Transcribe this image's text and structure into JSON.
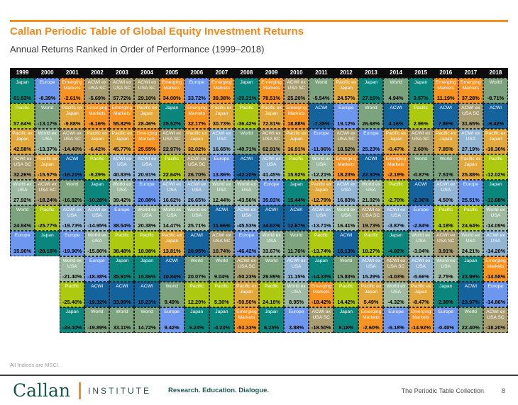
{
  "header": {
    "title": "Callan Periodic Table of Global Equity Investment Returns",
    "subtitle": "Annual Returns Ranked in Order of Performance (1999–2018)"
  },
  "footnote": "All Indices are MSCI.",
  "footer": {
    "brand": "Callan",
    "brand_sub": "INSTITUTE",
    "tagline": "Research. Education. Dialogue.",
    "collection": "The Periodic Table Collection",
    "page_number": "8"
  },
  "colors": {
    "accent_orange": "#f68b1f",
    "brand_teal": "#1e564b",
    "header_bar": "#0c0c0c"
  },
  "chart_data": {
    "type": "table",
    "title": "Callan Periodic Table of Global Equity Investment Returns",
    "subtitle": "Annual Returns Ranked in Order of Performance (1999–2018)",
    "note": "Columns list asset classes ranked best to worst annual return; 1999 and 2000 have 7 ranked indices, 2001-2018 have 10.",
    "assets": {
      "jpn": {
        "label": "Japan",
        "color": "#0a867c"
      },
      "eur": {
        "label": "Europe",
        "color": "#6d97ee"
      },
      "em": {
        "label": "Emerging Markets",
        "color": "#f79323"
      },
      "axussc": {
        "label": "ACWI ex USA SC",
        "color": "#a89e72"
      },
      "pac": {
        "label": "Pacific",
        "color": "#aeca10"
      },
      "wld": {
        "label": "World",
        "color": "#7ca37d"
      },
      "pxj": {
        "label": "Pacific ex Japan",
        "color": "#e2a83c"
      },
      "wxus": {
        "label": "World ex USA",
        "color": "#9fbaa2"
      },
      "acwi": {
        "label": "ACWI",
        "color": "#15639d"
      },
      "axus": {
        "label": "ACWI ex USA",
        "color": "#93b5d4"
      }
    },
    "columns": [
      {
        "year": "1999",
        "cells": [
          [
            "jpn",
            "61.53%"
          ],
          [
            "pac",
            "57.64%"
          ],
          [
            "pxj",
            "42.58%"
          ],
          [
            "axussc",
            "32.26%"
          ],
          [
            "wxus",
            "27.92%"
          ],
          [
            "wld",
            "24.94%"
          ],
          [
            "eur",
            "15.90%"
          ]
        ]
      },
      {
        "year": "2000",
        "cells": [
          [
            "eur",
            "-8.39%"
          ],
          [
            "wld",
            "-13.17%"
          ],
          [
            "wxus",
            "-13.37%"
          ],
          [
            "pxj",
            "-15.57%"
          ],
          [
            "axussc",
            "-18.24%"
          ],
          [
            "pac",
            "-25.77%"
          ],
          [
            "jpn",
            "-28.16%"
          ]
        ]
      },
      {
        "year": "2001",
        "cells": [
          [
            "em",
            "-2.61%"
          ],
          [
            "pxj",
            "-9.88%"
          ],
          [
            "axussc",
            "-14.40%"
          ],
          [
            "acwi",
            "-16.21%"
          ],
          [
            "wld",
            "-16.82%"
          ],
          [
            "axus",
            "-19.73%"
          ],
          [
            "eur",
            "-19.90%"
          ],
          [
            "wxus",
            "-21.40%"
          ],
          [
            "pac",
            "-25.40%"
          ],
          [
            "jpn",
            "-29.40%"
          ]
        ]
      },
      {
        "year": "2002",
        "cells": [
          [
            "axussc",
            "-5.69%"
          ],
          [
            "em",
            "-6.16%"
          ],
          [
            "pxj",
            "-6.42%"
          ],
          [
            "pac",
            "-9.29%"
          ],
          [
            "jpn",
            "-10.28%"
          ],
          [
            "axus",
            "-14.95%"
          ],
          [
            "wxus",
            "-15.80%"
          ],
          [
            "eur",
            "-18.38%"
          ],
          [
            "acwi",
            "-19.32%"
          ],
          [
            "wld",
            "-19.89%"
          ]
        ]
      },
      {
        "year": "2003",
        "cells": [
          [
            "axussc",
            "57.72%"
          ],
          [
            "em",
            "55.82%"
          ],
          [
            "pxj",
            "45.77%"
          ],
          [
            "axus",
            "40.83%"
          ],
          [
            "wxus",
            "39.42%"
          ],
          [
            "eur",
            "38.54%"
          ],
          [
            "pac",
            "38.48%"
          ],
          [
            "jpn",
            "35.91%"
          ],
          [
            "acwi",
            "33.99%"
          ],
          [
            "wld",
            "33.11%"
          ]
        ]
      },
      {
        "year": "2004",
        "cells": [
          [
            "axussc",
            "29.10%"
          ],
          [
            "pxj",
            "28.46%"
          ],
          [
            "em",
            "25.55%"
          ],
          [
            "axus",
            "20.91%"
          ],
          [
            "eur",
            "20.88%"
          ],
          [
            "wxus",
            "20.38%"
          ],
          [
            "pac",
            "18.98%"
          ],
          [
            "jpn",
            "15.86%"
          ],
          [
            "acwi",
            "15.23%"
          ],
          [
            "wld",
            "14.72%"
          ]
        ]
      },
      {
        "year": "2005",
        "cells": [
          [
            "em",
            "34.00%"
          ],
          [
            "jpn",
            "25.52%"
          ],
          [
            "axussc",
            "22.97%"
          ],
          [
            "pac",
            "22.64%"
          ],
          [
            "axus",
            "16.62%"
          ],
          [
            "wxus",
            "14.47%"
          ],
          [
            "pxj",
            "13.81%"
          ],
          [
            "acwi",
            "10.84%"
          ],
          [
            "wld",
            "9.49%"
          ],
          [
            "eur",
            "9.42%"
          ]
        ]
      },
      {
        "year": "2006",
        "cells": [
          [
            "eur",
            "33.72%"
          ],
          [
            "em",
            "32.17%"
          ],
          [
            "pxj",
            "32.02%"
          ],
          [
            "axussc",
            "26.70%"
          ],
          [
            "axus",
            "26.65%"
          ],
          [
            "wxus",
            "25.71%"
          ],
          [
            "acwi",
            "20.95%"
          ],
          [
            "wld",
            "20.07%"
          ],
          [
            "pac",
            "12.20%"
          ],
          [
            "jpn",
            "6.24%"
          ]
        ]
      },
      {
        "year": "2007",
        "cells": [
          [
            "em",
            "39.38%"
          ],
          [
            "pxj",
            "30.73%"
          ],
          [
            "axus",
            "16.65%"
          ],
          [
            "eur",
            "13.86%"
          ],
          [
            "wxus",
            "12.44%"
          ],
          [
            "acwi",
            "11.66%"
          ],
          [
            "axussc",
            "10.74%"
          ],
          [
            "wld",
            "9.04%"
          ],
          [
            "pac",
            "5.30%"
          ],
          [
            "jpn",
            "-4.23%"
          ]
        ]
      },
      {
        "year": "2008",
        "cells": [
          [
            "jpn",
            "-29.21%"
          ],
          [
            "pac",
            "-36.42%"
          ],
          [
            "wld",
            "-40.71%"
          ],
          [
            "acwi",
            "-42.20%"
          ],
          [
            "wxus",
            "-43.56%"
          ],
          [
            "axus",
            "-45.53%"
          ],
          [
            "eur",
            "-46.42%"
          ],
          [
            "axussc",
            "-50.23%"
          ],
          [
            "pxj",
            "-50.50%"
          ],
          [
            "em",
            "-53.33%"
          ]
        ]
      },
      {
        "year": "2009",
        "cells": [
          [
            "em",
            "78.51%"
          ],
          [
            "pxj",
            "72.81%"
          ],
          [
            "axussc",
            "62.91%"
          ],
          [
            "axus",
            "41.45%"
          ],
          [
            "eur",
            "35.83%"
          ],
          [
            "acwi",
            "34.63%"
          ],
          [
            "wxus",
            "33.67%"
          ],
          [
            "wld",
            "29.99%"
          ],
          [
            "pac",
            "24.18%"
          ],
          [
            "jpn",
            "6.25%"
          ]
        ]
      },
      {
        "year": "2010",
        "cells": [
          [
            "axussc",
            "25.20%"
          ],
          [
            "em",
            "18.88%"
          ],
          [
            "pxj",
            "16.91%"
          ],
          [
            "pac",
            "15.92%"
          ],
          [
            "jpn",
            "15.44%"
          ],
          [
            "acwi",
            "12.67%"
          ],
          [
            "wld",
            "11.76%"
          ],
          [
            "axus",
            "11.15%"
          ],
          [
            "wxus",
            "8.95%"
          ],
          [
            "eur",
            "3.88%"
          ]
        ]
      },
      {
        "year": "2011",
        "cells": [
          [
            "wld",
            "-5.54%"
          ],
          [
            "acwi",
            "-7.35%"
          ],
          [
            "eur",
            "-11.06%"
          ],
          [
            "wxus",
            "-12.21%"
          ],
          [
            "pxj",
            "-12.79%"
          ],
          [
            "axus",
            "-13.71%"
          ],
          [
            "pac",
            "-13.74%"
          ],
          [
            "jpn",
            "-14.33%"
          ],
          [
            "em",
            "-18.42%"
          ],
          [
            "axussc",
            "-18.50%"
          ]
        ]
      },
      {
        "year": "2012",
        "cells": [
          [
            "pxj",
            "24.57%"
          ],
          [
            "eur",
            "19.12%"
          ],
          [
            "axussc",
            "18.52%"
          ],
          [
            "em",
            "18.23%"
          ],
          [
            "axus",
            "16.83%"
          ],
          [
            "wxus",
            "16.41%"
          ],
          [
            "acwi",
            "16.13%"
          ],
          [
            "wld",
            "15.83%"
          ],
          [
            "pac",
            "14.42%"
          ],
          [
            "jpn",
            "8.18%"
          ]
        ]
      },
      {
        "year": "2013",
        "cells": [
          [
            "jpn",
            "27.16%"
          ],
          [
            "wld",
            "26.68%"
          ],
          [
            "eur",
            "25.23%"
          ],
          [
            "acwi",
            "22.80%"
          ],
          [
            "wxus",
            "21.02%"
          ],
          [
            "axussc",
            "19.73%"
          ],
          [
            "pac",
            "18.27%"
          ],
          [
            "axus",
            "15.29%"
          ],
          [
            "pxj",
            "5.49%"
          ],
          [
            "em",
            "-2.60%"
          ]
        ]
      },
      {
        "year": "2014",
        "cells": [
          [
            "wld",
            "4.94%"
          ],
          [
            "acwi",
            "4.16%"
          ],
          [
            "pxj",
            "-0.47%"
          ],
          [
            "em",
            "-2.19%"
          ],
          [
            "pac",
            "-2.70%"
          ],
          [
            "axus",
            "-3.87%"
          ],
          [
            "jpn",
            "-4.02%"
          ],
          [
            "axussc",
            "-4.03%"
          ],
          [
            "wxus",
            "-4.32%"
          ],
          [
            "eur",
            "-6.18%"
          ]
        ]
      },
      {
        "year": "2015",
        "cells": [
          [
            "jpn",
            "9.57%"
          ],
          [
            "pac",
            "2.96%"
          ],
          [
            "axussc",
            "2.60%"
          ],
          [
            "wld",
            "-0.87%"
          ],
          [
            "acwi",
            "-2.36%"
          ],
          [
            "eur",
            "-2.84%"
          ],
          [
            "wxus",
            "-3.04%"
          ],
          [
            "axus",
            "-5.66%"
          ],
          [
            "pxj",
            "-8.47%"
          ],
          [
            "em",
            "-14.92%"
          ]
        ]
      },
      {
        "year": "2016",
        "cells": [
          [
            "em",
            "11.19%"
          ],
          [
            "acwi",
            "7.86%"
          ],
          [
            "pxj",
            "7.85%"
          ],
          [
            "wld",
            "7.51%"
          ],
          [
            "axus",
            "4.50%"
          ],
          [
            "pac",
            "4.18%"
          ],
          [
            "axussc",
            "3.91%"
          ],
          [
            "wxus",
            "2.75%"
          ],
          [
            "jpn",
            "2.38%"
          ],
          [
            "eur",
            "-0.40%"
          ]
        ]
      },
      {
        "year": "2017",
        "cells": [
          [
            "em",
            "37.28%"
          ],
          [
            "axussc",
            "31.65%"
          ],
          [
            "axus",
            "27.19%"
          ],
          [
            "pxj",
            "25.88%"
          ],
          [
            "eur",
            "25.51%"
          ],
          [
            "pac",
            "24.64%"
          ],
          [
            "wxus",
            "24.21%"
          ],
          [
            "jpn",
            "23.99%"
          ],
          [
            "acwi",
            "23.97%"
          ],
          [
            "wld",
            "22.40%"
          ]
        ]
      },
      {
        "year": "2018",
        "cells": [
          [
            "wld",
            "-8.71%"
          ],
          [
            "acwi",
            "-9.42%"
          ],
          [
            "pxj",
            "-10.30%"
          ],
          [
            "pac",
            "-12.02%"
          ],
          [
            "jpn",
            "-12.88%"
          ],
          [
            "wxus",
            "-14.09%"
          ],
          [
            "axus",
            "-14.20%"
          ],
          [
            "em",
            "-14.58%"
          ],
          [
            "eur",
            "-14.86%"
          ],
          [
            "axussc",
            "-18.20%"
          ]
        ]
      }
    ]
  }
}
